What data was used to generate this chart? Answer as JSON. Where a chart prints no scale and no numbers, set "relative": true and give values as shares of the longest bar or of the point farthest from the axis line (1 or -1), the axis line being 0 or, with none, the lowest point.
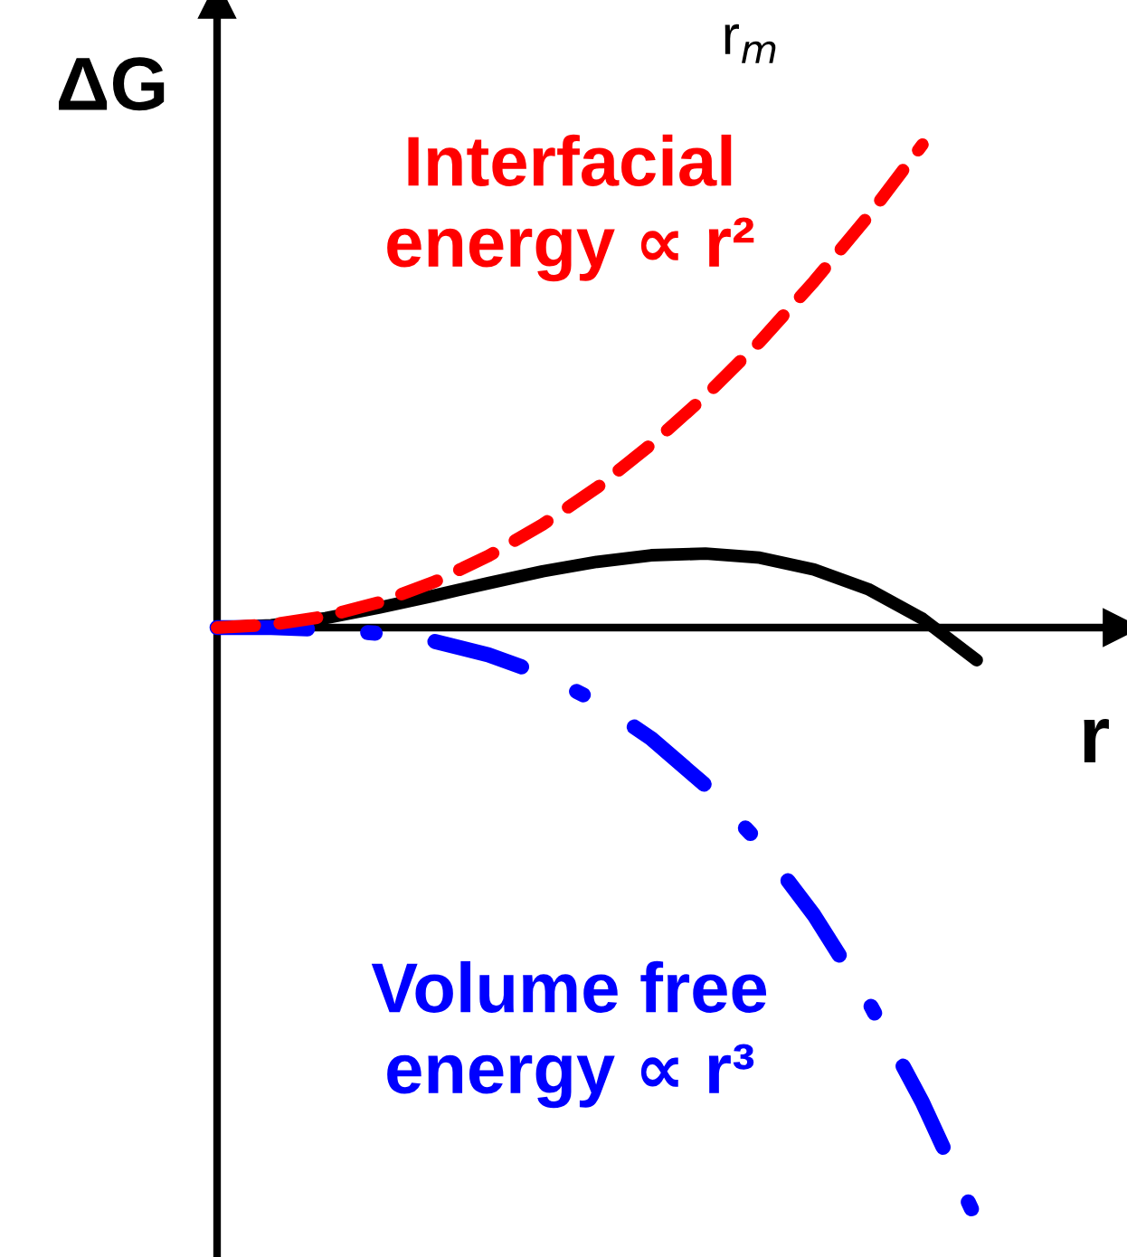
{
  "chart_data": {
    "type": "line",
    "relative": true,
    "ylabel": "ΔG",
    "xlabel": "r",
    "annotations": [
      "r$_{m}$"
    ],
    "categories": [
      null,
      null,
      null,
      null,
      null,
      null,
      null,
      null,
      null,
      null,
      null,
      null,
      null,
      null,
      null
    ],
    "series": [
      {
        "name": "Interfacial energy ∝ r²",
        "color": "#ff0000",
        "line_style": "dashed",
        "values": [
          0,
          0.005,
          0.019,
          0.043,
          0.077,
          0.121,
          0.174,
          0.236,
          0.309,
          0.391,
          0.482,
          0.584,
          0.694,
          0.815,
          null
        ]
      },
      {
        "name": "Volume free energy ∝ r³",
        "color": "#0000ff",
        "line_style": "dashdot",
        "values": [
          0,
          0,
          -0.003,
          -0.01,
          -0.023,
          -0.046,
          -0.079,
          -0.125,
          -0.187,
          -0.266,
          -0.364,
          -0.485,
          -0.63,
          -0.801,
          -1
        ]
      },
      {
        "color": "#000000",
        "line_style": "solid",
        "values": [
          0,
          0.004,
          0.016,
          0.034,
          0.054,
          0.075,
          0.095,
          0.111,
          0.122,
          0.125,
          0.118,
          0.098,
          0.065,
          0.015,
          -0.055
        ]
      }
    ],
    "marker": "none",
    "legend": false
  }
}
